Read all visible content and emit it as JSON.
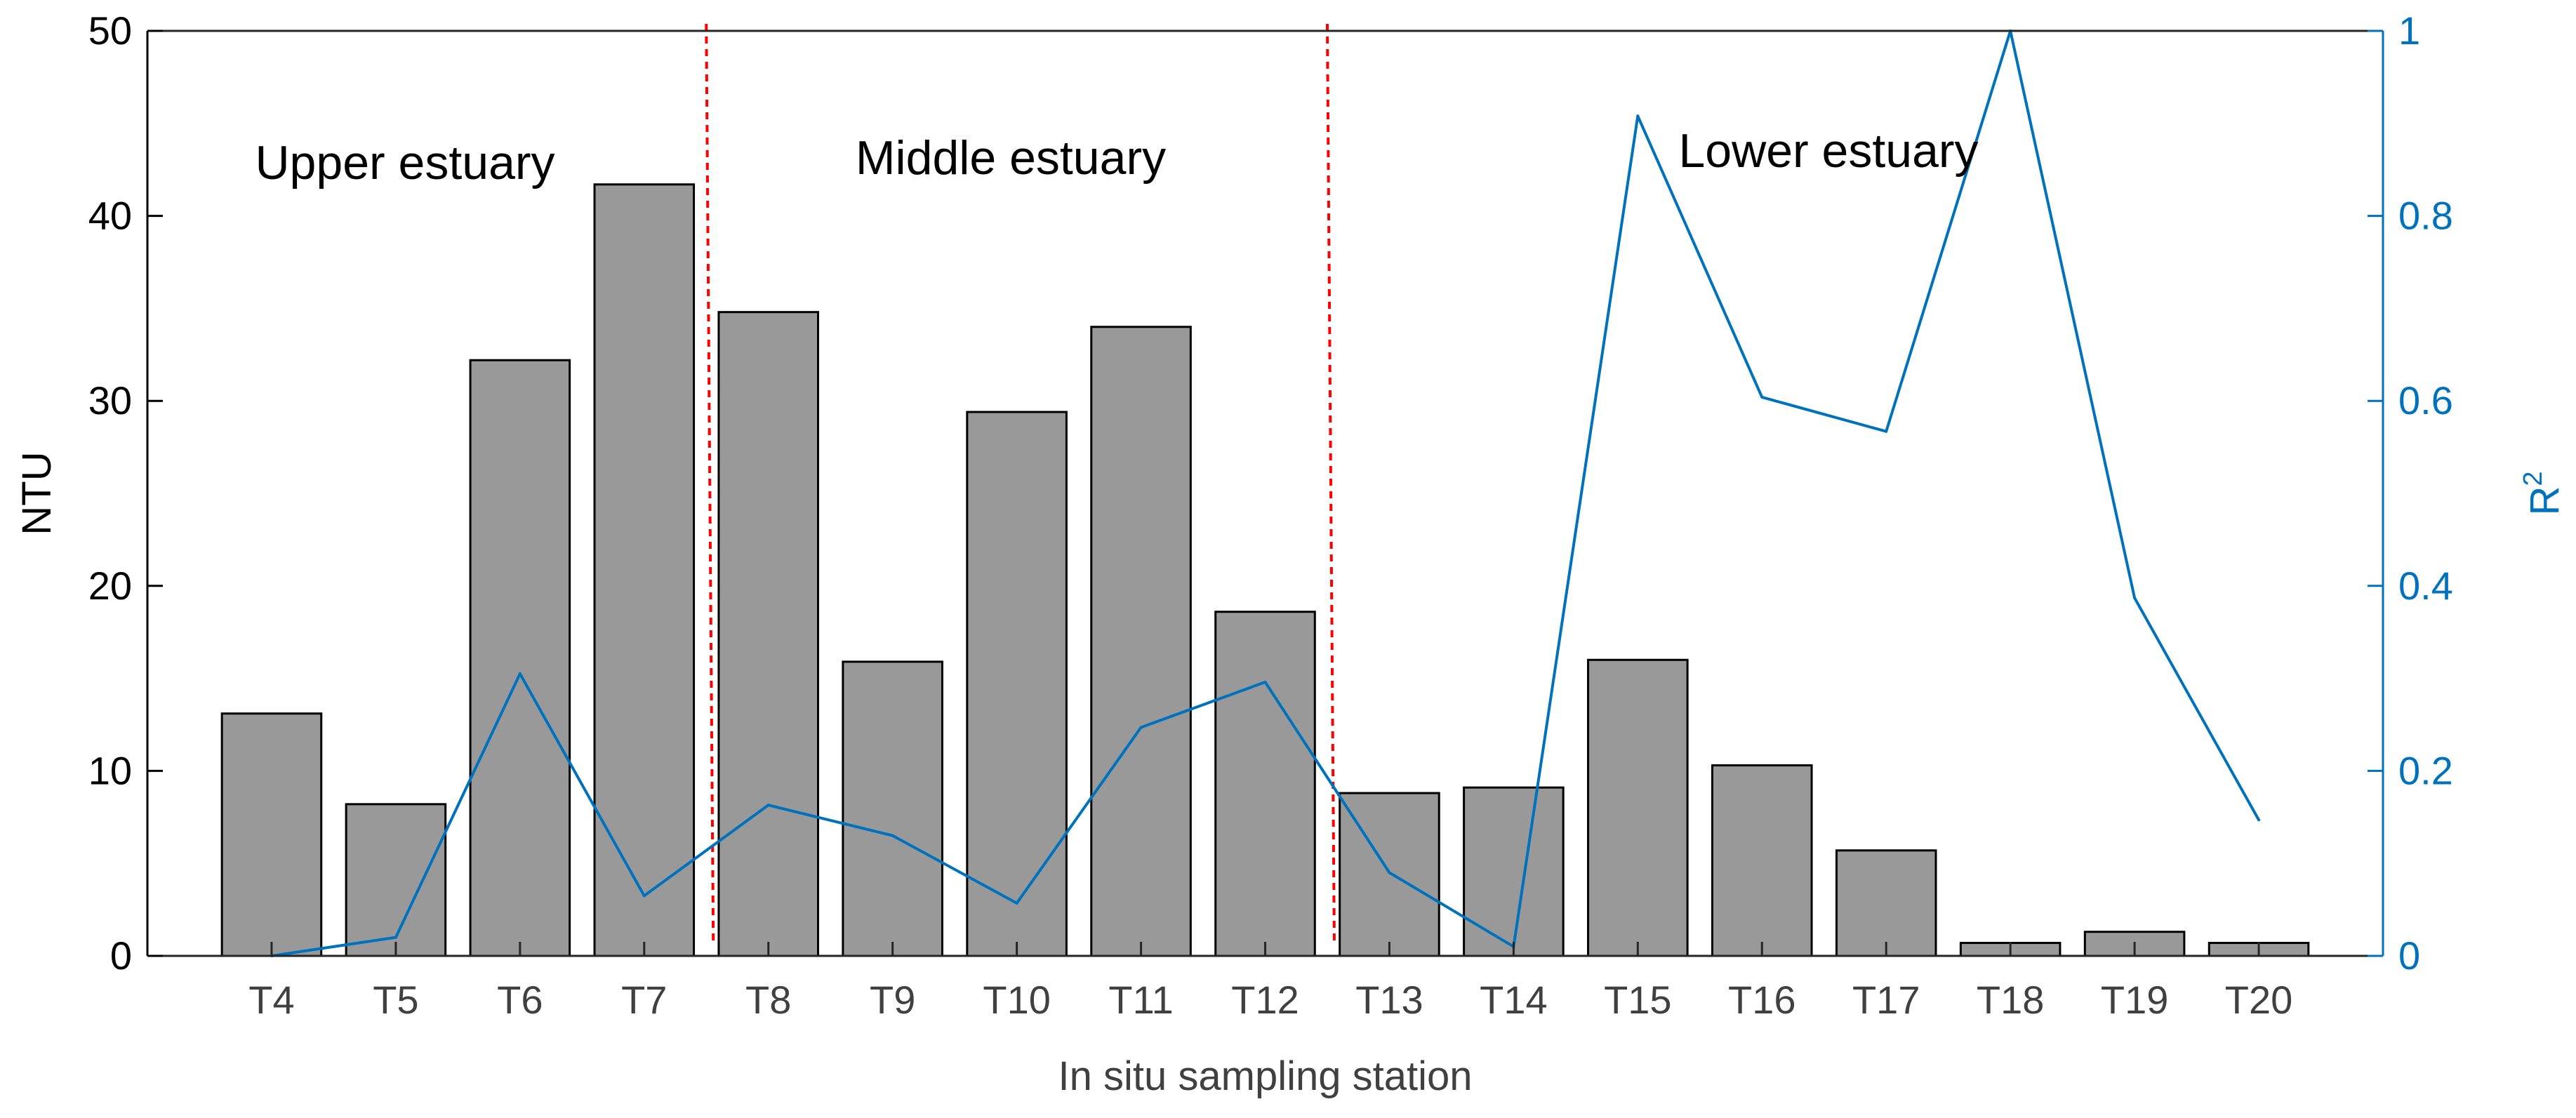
{
  "chart_data": {
    "type": "bar",
    "categories": [
      "T4",
      "T5",
      "T6",
      "T7",
      "T8",
      "T9",
      "T10",
      "T11",
      "T12",
      "T13",
      "T14",
      "T15",
      "T16",
      "T17",
      "T18",
      "T19",
      "T20"
    ],
    "series": [
      {
        "name": "NTU",
        "axis": "left",
        "type": "bar",
        "values": [
          13.1,
          8.2,
          32.2,
          41.7,
          34.8,
          15.9,
          29.4,
          34.0,
          18.6,
          8.8,
          9.1,
          16.0,
          10.3,
          5.7,
          0.7,
          1.3,
          0.7
        ]
      },
      {
        "name": "R2",
        "axis": "right",
        "type": "line",
        "values": [
          0.0,
          0.02,
          0.305,
          0.065,
          0.163,
          0.13,
          0.057,
          0.247,
          0.296,
          0.09,
          0.01,
          0.908,
          0.604,
          0.567,
          1.0,
          0.387,
          0.147
        ]
      }
    ],
    "xlabel": "In situ sampling station",
    "ylabel_left": "NTU",
    "ylabel_right_base": "R",
    "ylabel_right_sup": "2",
    "ylim_left": [
      0,
      50
    ],
    "ylim_right": [
      0,
      1
    ],
    "yticks_left": [
      "0",
      "10",
      "20",
      "30",
      "40",
      "50"
    ],
    "yticks_right": [
      "0",
      "0.2",
      "0.4",
      "0.6",
      "0.8",
      "1"
    ],
    "regions": [
      {
        "label": "Upper estuary"
      },
      {
        "label": "Middle estuary"
      },
      {
        "label": "Lower estuary"
      }
    ],
    "dividers_between": [
      [
        3,
        4
      ],
      [
        8,
        9
      ]
    ],
    "colors": {
      "bar": "#999999",
      "bar_edge": "#000000",
      "line": "#0072BD",
      "divider": "#FF0000",
      "axis_left": "#000000",
      "axis_right": "#0072BD",
      "tick_label_x": "#404040"
    }
  }
}
